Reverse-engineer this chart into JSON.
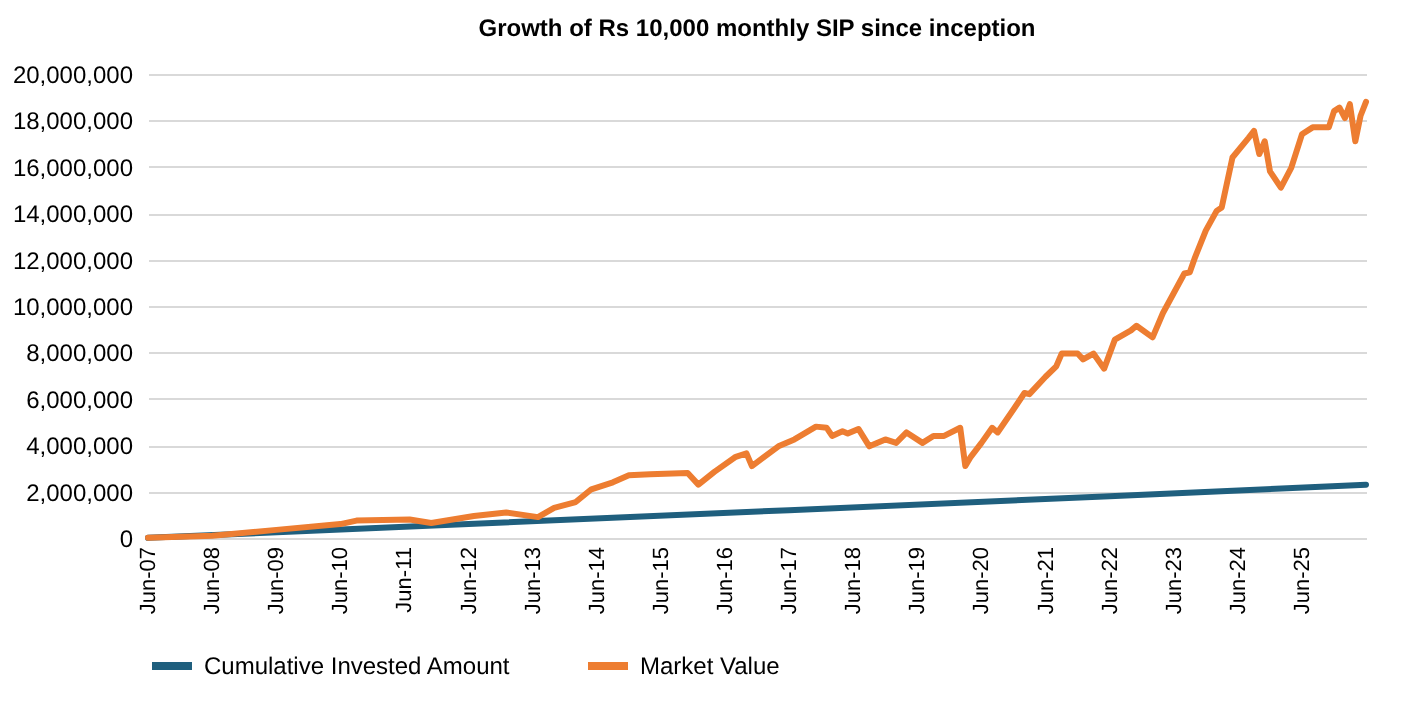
{
  "chart_data": {
    "type": "line",
    "title": "Growth of Rs 10,000 monthly SIP since inception",
    "legend": "bottom",
    "grid": "y",
    "xlim": [
      "2007-06",
      "2026-06"
    ],
    "xticks": [
      {
        "value": "2007-06",
        "label": "Jun-07"
      },
      {
        "value": "2008-06",
        "label": "Jun-08"
      },
      {
        "value": "2009-06",
        "label": "Jun-09"
      },
      {
        "value": "2010-06",
        "label": "Jun-10"
      },
      {
        "value": "2011-06",
        "label": "Jun-11"
      },
      {
        "value": "2012-06",
        "label": "Jun-12"
      },
      {
        "value": "2013-06",
        "label": "Jun-13"
      },
      {
        "value": "2014-06",
        "label": "Jun-14"
      },
      {
        "value": "2015-06",
        "label": "Jun-15"
      },
      {
        "value": "2016-06",
        "label": "Jun-16"
      },
      {
        "value": "2017-06",
        "label": "Jun-17"
      },
      {
        "value": "2018-06",
        "label": "Jun-18"
      },
      {
        "value": "2019-06",
        "label": "Jun-19"
      },
      {
        "value": "2020-06",
        "label": "Jun-20"
      },
      {
        "value": "2021-06",
        "label": "Jun-21"
      },
      {
        "value": "2022-06",
        "label": "Jun-22"
      },
      {
        "value": "2023-06",
        "label": "Jun-23"
      },
      {
        "value": "2024-06",
        "label": "Jun-24"
      },
      {
        "value": "2025-06",
        "label": "Jun-25"
      }
    ],
    "ylim": [
      0,
      20000000
    ],
    "yticks": [
      {
        "value": 0,
        "label": "0"
      },
      {
        "value": 2000000,
        "label": "2,000,000"
      },
      {
        "value": 4000000,
        "label": "4,000,000"
      },
      {
        "value": 6000000,
        "label": "6,000,000"
      },
      {
        "value": 8000000,
        "label": "8,000,000"
      },
      {
        "value": 10000000,
        "label": "10,000,000"
      },
      {
        "value": 12000000,
        "label": "12,000,000"
      },
      {
        "value": 14000000,
        "label": "14,000,000"
      },
      {
        "value": 16000000,
        "label": "16,000,000"
      },
      {
        "value": 18000000,
        "label": "18,000,000"
      },
      {
        "value": 20000000,
        "label": "20,000,000"
      }
    ],
    "series": [
      {
        "name": "Cumulative Invested Amount",
        "color": "#1f5f7e",
        "x": [
          "2007-06",
          "2012-06",
          "2017-06",
          "2022-06",
          "2026-06"
        ],
        "values": [
          10000,
          600000,
          1200000,
          1800000,
          2300000
        ]
      },
      {
        "name": "Market Value",
        "color": "#ed7d31",
        "x": [
          "2007-06",
          "2008-06",
          "2009-06",
          "2010-06",
          "2010-09",
          "2011-07",
          "2011-11",
          "2012-07",
          "2013-01",
          "2013-07",
          "2013-10",
          "2014-02",
          "2014-05",
          "2014-09",
          "2014-12",
          "2015-04",
          "2015-11",
          "2016-01",
          "2016-04",
          "2016-08",
          "2016-10",
          "2016-11",
          "2017-04",
          "2017-07",
          "2017-11",
          "2018-01",
          "2018-02",
          "2018-04",
          "2018-05",
          "2018-07",
          "2018-09",
          "2018-12",
          "2019-02",
          "2019-04",
          "2019-07",
          "2019-09",
          "2019-11",
          "2020-02",
          "2020-03",
          "2020-04",
          "2020-06",
          "2020-08",
          "2020-09",
          "2020-12",
          "2021-02",
          "2021-03",
          "2021-06",
          "2021-08",
          "2021-09",
          "2021-12",
          "2022-01",
          "2022-03",
          "2022-05",
          "2022-07",
          "2022-10",
          "2022-11",
          "2023-02",
          "2023-04",
          "2023-06",
          "2023-08",
          "2023-09",
          "2023-10",
          "2023-12",
          "2024-02",
          "2024-03",
          "2024-05",
          "2024-08",
          "2024-09",
          "2024-10",
          "2024-11",
          "2024-12",
          "2025-02",
          "2025-04",
          "2025-06",
          "2025-08",
          "2025-11",
          "2025-12",
          "2026-01",
          "2026-02",
          "2026-03",
          "2026-04",
          "2026-05",
          "2026-06"
        ],
        "values": [
          10000,
          100000,
          350000,
          600000,
          750000,
          800000,
          650000,
          950000,
          1100000,
          900000,
          1300000,
          1550000,
          2100000,
          2400000,
          2700000,
          2750000,
          2800000,
          2300000,
          2850000,
          3500000,
          3650000,
          3100000,
          3950000,
          4250000,
          4800000,
          4750000,
          4400000,
          4600000,
          4500000,
          4700000,
          3950000,
          4250000,
          4100000,
          4550000,
          4100000,
          4400000,
          4400000,
          4750000,
          3100000,
          3500000,
          4100000,
          4750000,
          4550000,
          5550000,
          6250000,
          6200000,
          6950000,
          7400000,
          7950000,
          7950000,
          7700000,
          7950000,
          7300000,
          8550000,
          8950000,
          9150000,
          8650000,
          9700000,
          10550000,
          11400000,
          11450000,
          12100000,
          13250000,
          14100000,
          14250000,
          16400000,
          17250000,
          17550000,
          16550000,
          17100000,
          15800000,
          15100000,
          15950000,
          17400000,
          17700000,
          17700000,
          18400000,
          18550000,
          18100000,
          18700000,
          17100000,
          18200000,
          18800000
        ]
      }
    ]
  }
}
